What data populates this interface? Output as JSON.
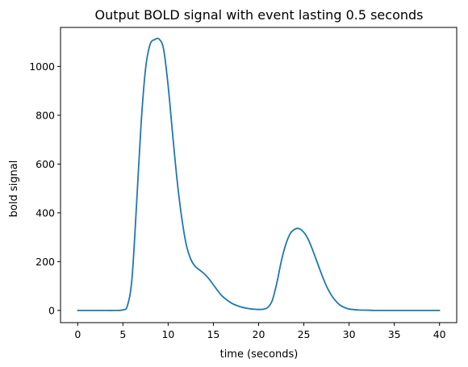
{
  "chart_data": {
    "type": "line",
    "title": "Output BOLD signal with event lasting 0.5 seconds",
    "xlabel": "time (seconds)",
    "ylabel": "bold signal",
    "xlim": [
      -1.9,
      41.9
    ],
    "ylim": [
      -50,
      1160
    ],
    "xticks": [
      0,
      5,
      10,
      15,
      20,
      25,
      30,
      35,
      40
    ],
    "yticks": [
      0,
      200,
      400,
      600,
      800,
      1000
    ],
    "grid": false,
    "line_color": "#1f77b4",
    "series": [
      {
        "x": [
          0,
          1,
          2,
          3,
          4,
          5,
          5.5,
          6,
          6.5,
          7,
          7.5,
          8,
          8.5,
          9,
          9.5,
          10,
          10.5,
          11,
          11.5,
          12,
          12.5,
          13,
          13.5,
          14,
          14.5,
          15,
          15.5,
          16,
          17,
          18,
          19,
          20,
          20.5,
          21,
          21.5,
          22,
          22.5,
          23,
          23.5,
          24,
          24.5,
          25,
          25.5,
          26,
          26.5,
          27,
          27.5,
          28,
          28.5,
          29,
          29.5,
          30,
          31,
          32,
          33,
          34,
          35,
          36,
          37,
          38,
          39,
          40
        ],
        "y": [
          0,
          0,
          0,
          0,
          0,
          2,
          20,
          130,
          430,
          760,
          990,
          1090,
          1110,
          1112,
          1070,
          920,
          720,
          530,
          380,
          270,
          210,
          180,
          165,
          150,
          130,
          105,
          80,
          58,
          30,
          15,
          7,
          4,
          5,
          12,
          40,
          110,
          200,
          270,
          315,
          333,
          335,
          320,
          290,
          245,
          195,
          145,
          100,
          65,
          40,
          22,
          12,
          6,
          2,
          1,
          0,
          0,
          0,
          0,
          0,
          0,
          0,
          0
        ]
      }
    ]
  }
}
